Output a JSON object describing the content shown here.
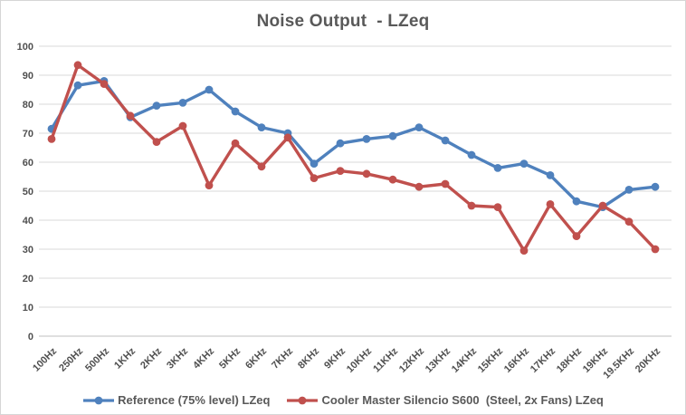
{
  "chart_data": {
    "type": "line",
    "title": "Noise Output  - LZeq",
    "categories": [
      "100Hz",
      "250Hz",
      "500Hz",
      "1KHz",
      "2KHz",
      "3KHz",
      "4KHz",
      "5KHz",
      "6KHz",
      "7KHz",
      "8KHz",
      "9KHz",
      "10KHz",
      "11KHz",
      "12KHz",
      "13KHz",
      "14KHz",
      "15KHz",
      "16KHz",
      "17KHz",
      "18KHz",
      "19KHz",
      "19.5KHz",
      "20KHz"
    ],
    "series": [
      {
        "name": "Reference (75% level) LZeq",
        "color": "#4F81BD",
        "values": [
          71.5,
          86.5,
          88,
          75.5,
          79.5,
          80.5,
          85,
          77.5,
          72,
          70,
          59.5,
          66.5,
          68,
          69,
          72,
          67.5,
          62.5,
          58,
          59.5,
          55.5,
          46.5,
          44.5,
          50.5,
          51.5
        ]
      },
      {
        "name": "Cooler Master Silencio S600  (Steel, 2x Fans) LZeq",
        "color": "#C0504D",
        "values": [
          68,
          93.5,
          87,
          76,
          67,
          72.5,
          52,
          66.5,
          58.5,
          68.5,
          54.5,
          57,
          56,
          54,
          51.5,
          52.5,
          45,
          44.5,
          29.5,
          45.5,
          34.5,
          45,
          39.5,
          30
        ]
      }
    ],
    "xlabel": "",
    "ylabel": "",
    "ylim": [
      0,
      100
    ],
    "yticks": [
      0,
      10,
      20,
      30,
      40,
      50,
      60,
      70,
      80,
      90,
      100
    ],
    "grid": true,
    "legend_position": "bottom",
    "colors": {
      "gridline": "#d9d9d9",
      "axis_line": "#bfbfbf",
      "tick_label": "#4f4f4f",
      "title_text": "#595959",
      "legend_text": "#595959",
      "background": "#ffffff",
      "border": "#d6d6d6"
    }
  }
}
